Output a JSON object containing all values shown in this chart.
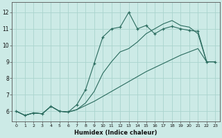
{
  "xlabel": "Humidex (Indice chaleur)",
  "bg_color": "#cceae6",
  "grid_color": "#aad4ce",
  "line_color": "#2a6b5e",
  "xlim": [
    -0.5,
    23.5
  ],
  "ylim": [
    5.4,
    12.6
  ],
  "xticks": [
    0,
    1,
    2,
    3,
    4,
    5,
    6,
    7,
    8,
    9,
    10,
    11,
    12,
    13,
    14,
    15,
    16,
    17,
    18,
    19,
    20,
    21,
    22,
    23
  ],
  "yticks": [
    6,
    7,
    8,
    9,
    10,
    11,
    12
  ],
  "x": [
    0,
    1,
    2,
    3,
    4,
    5,
    6,
    7,
    8,
    9,
    10,
    11,
    12,
    13,
    14,
    15,
    16,
    17,
    18,
    19,
    20,
    21,
    22,
    23
  ],
  "line1_nomarker": [
    6.0,
    5.75,
    5.9,
    5.85,
    6.3,
    6.0,
    5.95,
    6.1,
    6.5,
    7.2,
    8.3,
    9.0,
    9.6,
    9.8,
    10.2,
    10.7,
    11.0,
    11.3,
    11.5,
    11.2,
    11.1,
    10.7,
    9.0,
    9.0
  ],
  "line2_marked": [
    6.0,
    5.75,
    5.9,
    5.85,
    6.3,
    6.0,
    5.95,
    6.4,
    7.3,
    8.9,
    10.5,
    11.0,
    11.1,
    12.0,
    11.0,
    11.2,
    10.7,
    11.0,
    11.15,
    11.0,
    10.9,
    10.85,
    9.0,
    9.0
  ],
  "line3_diagonal": [
    6.0,
    5.75,
    5.9,
    5.85,
    6.3,
    6.0,
    5.95,
    6.1,
    6.35,
    6.6,
    6.9,
    7.2,
    7.5,
    7.8,
    8.1,
    8.4,
    8.65,
    8.9,
    9.15,
    9.4,
    9.6,
    9.8,
    9.0,
    9.0
  ]
}
